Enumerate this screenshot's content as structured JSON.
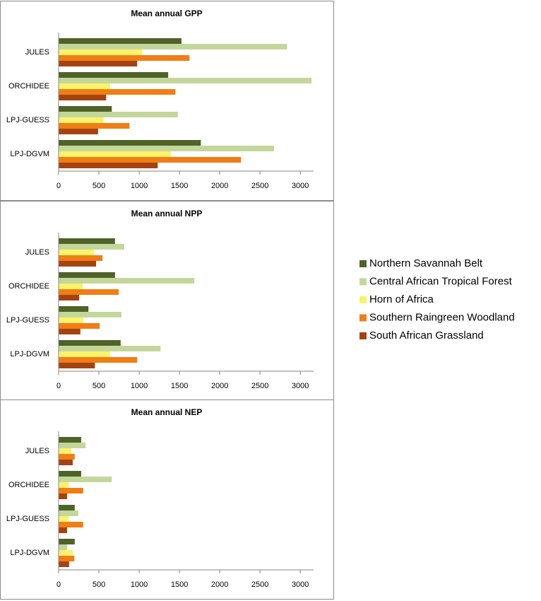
{
  "chart_data": [
    {
      "type": "bar",
      "orientation": "horizontal",
      "title": "Mean annual GPP",
      "categories": [
        "JULES",
        "ORCHIDEE",
        "LPJ-GUESS",
        "LPJ-DGVM"
      ],
      "series": [
        {
          "name": "Northern Savannah Belt",
          "color": "#4f6228",
          "values": [
            1525,
            1360,
            660,
            1765
          ]
        },
        {
          "name": "Central African Tropical Forest",
          "color": "#c4d79b",
          "values": [
            2835,
            3140,
            1480,
            2675
          ]
        },
        {
          "name": "Horn of Africa",
          "color": "#fbf36a",
          "values": [
            1035,
            640,
            560,
            1395
          ]
        },
        {
          "name": "Southern Raingreen Woodland",
          "color": "#f07e15",
          "values": [
            1625,
            1450,
            880,
            2265
          ]
        },
        {
          "name": "South African Grassland",
          "color": "#a4430f",
          "values": [
            975,
            590,
            490,
            1230
          ]
        }
      ],
      "xlim": [
        0,
        3200
      ],
      "xticks": [
        0,
        500,
        1000,
        1500,
        2000,
        2500,
        3000
      ]
    },
    {
      "type": "bar",
      "orientation": "horizontal",
      "title": "Mean annual NPP",
      "categories": [
        "JULES",
        "ORCHIDEE",
        "LPJ-GUESS",
        "LPJ-DGVM"
      ],
      "series": [
        {
          "name": "Northern Savannah Belt",
          "color": "#4f6228",
          "values": [
            700,
            700,
            370,
            770
          ]
        },
        {
          "name": "Central African Tropical Forest",
          "color": "#c4d79b",
          "values": [
            815,
            1685,
            780,
            1265
          ]
        },
        {
          "name": "Horn of Africa",
          "color": "#fbf36a",
          "values": [
            440,
            300,
            305,
            640
          ]
        },
        {
          "name": "Southern Raingreen Woodland",
          "color": "#f07e15",
          "values": [
            545,
            745,
            510,
            975
          ]
        },
        {
          "name": "South African Grassland",
          "color": "#a4430f",
          "values": [
            465,
            255,
            270,
            450
          ]
        }
      ],
      "xlim": [
        0,
        3200
      ],
      "xticks": [
        0,
        500,
        1000,
        1500,
        2000,
        2500,
        3000
      ]
    },
    {
      "type": "bar",
      "orientation": "horizontal",
      "title": "Mean annual NEP",
      "categories": [
        "JULES",
        "ORCHIDEE",
        "LPJ-GUESS",
        "LPJ-DGVM"
      ],
      "series": [
        {
          "name": "Northern Savannah Belt",
          "color": "#4f6228",
          "values": [
            280,
            280,
            200,
            200
          ]
        },
        {
          "name": "Central African Tropical Forest",
          "color": "#c4d79b",
          "values": [
            335,
            660,
            245,
            105
          ]
        },
        {
          "name": "Horn of Africa",
          "color": "#fbf36a",
          "values": [
            160,
            125,
            125,
            175
          ]
        },
        {
          "name": "Southern Raingreen Woodland",
          "color": "#f07e15",
          "values": [
            200,
            305,
            305,
            195
          ]
        },
        {
          "name": "South African Grassland",
          "color": "#a4430f",
          "values": [
            175,
            105,
            105,
            130
          ]
        }
      ],
      "xlim": [
        0,
        3200
      ],
      "xticks": [
        0,
        500,
        1000,
        1500,
        2000,
        2500,
        3000
      ]
    }
  ]
}
